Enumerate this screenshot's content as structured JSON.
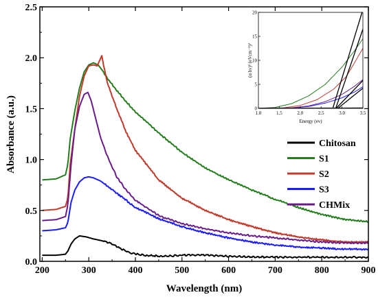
{
  "chart_data": [
    {
      "type": "line",
      "xlabel": "Wavelength (nm)",
      "ylabel": "Absorbance (a.u.)",
      "xlim": [
        195,
        900
      ],
      "ylim": [
        0,
        2.5
      ],
      "xticks": [
        200,
        300,
        400,
        500,
        600,
        700,
        800,
        900
      ],
      "yticks": [
        0.0,
        0.5,
        1.0,
        1.5,
        2.0,
        2.5
      ],
      "xtick_labels": [
        "200",
        "300",
        "400",
        "500",
        "600",
        "700",
        "800",
        "900"
      ],
      "ytick_labels": [
        "0.0",
        "0.5",
        "1.0",
        "1.5",
        "2.0",
        "2.5"
      ],
      "grid": false,
      "legend_position": "bottom-right",
      "series": [
        {
          "name": "Chitosan",
          "color": "#000000",
          "x": [
            200,
            230,
            250,
            255,
            262,
            270,
            280,
            295,
            310,
            330,
            350,
            370,
            390,
            420,
            460,
            500,
            550,
            600,
            700,
            800,
            900
          ],
          "y": [
            0.06,
            0.06,
            0.07,
            0.1,
            0.17,
            0.22,
            0.25,
            0.24,
            0.22,
            0.2,
            0.17,
            0.12,
            0.08,
            0.06,
            0.05,
            0.06,
            0.06,
            0.05,
            0.04,
            0.04,
            0.04
          ]
        },
        {
          "name": "S1",
          "color": "#237d1c",
          "x": [
            200,
            230,
            250,
            255,
            260,
            270,
            280,
            290,
            300,
            310,
            320,
            330,
            340,
            360,
            380,
            400,
            450,
            500,
            550,
            600,
            650,
            700,
            750,
            800,
            850,
            900
          ],
          "y": [
            0.8,
            0.81,
            0.85,
            0.95,
            1.2,
            1.48,
            1.7,
            1.86,
            1.93,
            1.95,
            1.93,
            1.87,
            1.8,
            1.68,
            1.57,
            1.47,
            1.26,
            1.07,
            0.92,
            0.8,
            0.7,
            0.61,
            0.53,
            0.46,
            0.41,
            0.39
          ]
        },
        {
          "name": "S2",
          "color": "#c0392b",
          "x": [
            200,
            230,
            250,
            255,
            260,
            270,
            280,
            290,
            300,
            310,
            318,
            323,
            328,
            333,
            340,
            360,
            380,
            400,
            450,
            500,
            550,
            600,
            650,
            700,
            750,
            800,
            850,
            900
          ],
          "y": [
            0.5,
            0.51,
            0.54,
            0.62,
            0.95,
            1.3,
            1.62,
            1.82,
            1.92,
            1.93,
            1.92,
            1.97,
            2.02,
            1.9,
            1.75,
            1.5,
            1.27,
            1.09,
            0.8,
            0.62,
            0.5,
            0.41,
            0.34,
            0.28,
            0.24,
            0.21,
            0.19,
            0.19
          ]
        },
        {
          "name": "S3",
          "color": "#1a1aff",
          "x": [
            200,
            230,
            250,
            255,
            262,
            270,
            280,
            290,
            300,
            310,
            325,
            340,
            360,
            380,
            400,
            450,
            500,
            550,
            600,
            650,
            700,
            750,
            800,
            850,
            900
          ],
          "y": [
            0.3,
            0.31,
            0.33,
            0.38,
            0.58,
            0.7,
            0.78,
            0.82,
            0.83,
            0.82,
            0.79,
            0.74,
            0.67,
            0.6,
            0.53,
            0.42,
            0.34,
            0.28,
            0.23,
            0.19,
            0.16,
            0.14,
            0.13,
            0.12,
            0.12
          ]
        },
        {
          "name": "CHMix",
          "color": "#6a1b8a",
          "x": [
            200,
            230,
            250,
            255,
            262,
            270,
            280,
            290,
            298,
            305,
            315,
            325,
            340,
            360,
            380,
            400,
            450,
            500,
            550,
            600,
            650,
            700,
            750,
            800,
            850,
            900
          ],
          "y": [
            0.4,
            0.41,
            0.44,
            0.55,
            0.95,
            1.3,
            1.52,
            1.64,
            1.66,
            1.58,
            1.4,
            1.22,
            1.03,
            0.83,
            0.7,
            0.6,
            0.45,
            0.37,
            0.32,
            0.28,
            0.25,
            0.23,
            0.21,
            0.19,
            0.18,
            0.18
          ]
        }
      ]
    },
    {
      "type": "line",
      "xlabel": "Energy (ev)",
      "ylabel": "(α hν)² (eVcm⁻¹)²",
      "xlim": [
        1.0,
        3.5
      ],
      "ylim": [
        0,
        20
      ],
      "xticks": [
        1.0,
        1.5,
        2.0,
        2.5,
        3.0,
        3.5
      ],
      "yticks": [
        0,
        5,
        10,
        15,
        20
      ],
      "xtick_labels": [
        "1.0",
        "1.5",
        "2.0",
        "2.5",
        "3.0",
        "3.5"
      ],
      "ytick_labels": [
        "0",
        "5",
        "10",
        "15",
        "20"
      ],
      "series": [
        {
          "color": "#237d1c",
          "x": [
            1.0,
            1.4,
            1.8,
            2.2,
            2.6,
            3.0,
            3.3,
            3.5
          ],
          "y": [
            0,
            0.2,
            1.0,
            2.6,
            5.0,
            8.6,
            12.0,
            14.5
          ]
        },
        {
          "color": "#c0392b",
          "x": [
            1.0,
            1.6,
            2.0,
            2.4,
            2.8,
            3.1,
            3.3,
            3.5
          ],
          "y": [
            0,
            0.1,
            0.6,
            1.8,
            4.0,
            6.6,
            9.5,
            12.5
          ]
        },
        {
          "color": "#1a1aff",
          "x": [
            1.0,
            1.8,
            2.2,
            2.6,
            3.0,
            3.3,
            3.5
          ],
          "y": [
            0,
            0.1,
            0.4,
            1.1,
            2.2,
            3.4,
            4.5
          ]
        },
        {
          "color": "#6a1b8a",
          "x": [
            1.0,
            1.8,
            2.2,
            2.6,
            3.0,
            3.3,
            3.5
          ],
          "y": [
            0,
            0.1,
            0.5,
            1.4,
            2.9,
            4.6,
            6.0
          ]
        },
        {
          "color": "#000000",
          "x": [
            1.0,
            3.5
          ],
          "y": [
            0.05,
            0.1
          ]
        }
      ],
      "tangents": [
        {
          "color": "#000000",
          "x": [
            2.78,
            3.48
          ],
          "y": [
            0,
            20
          ]
        },
        {
          "color": "#000000",
          "x": [
            2.85,
            3.5
          ],
          "y": [
            0,
            16.5
          ]
        },
        {
          "color": "#000000",
          "x": [
            2.86,
            3.5
          ],
          "y": [
            0,
            5.8
          ]
        },
        {
          "color": "#000000",
          "x": [
            2.9,
            3.5
          ],
          "y": [
            0,
            4.2
          ]
        }
      ]
    }
  ]
}
